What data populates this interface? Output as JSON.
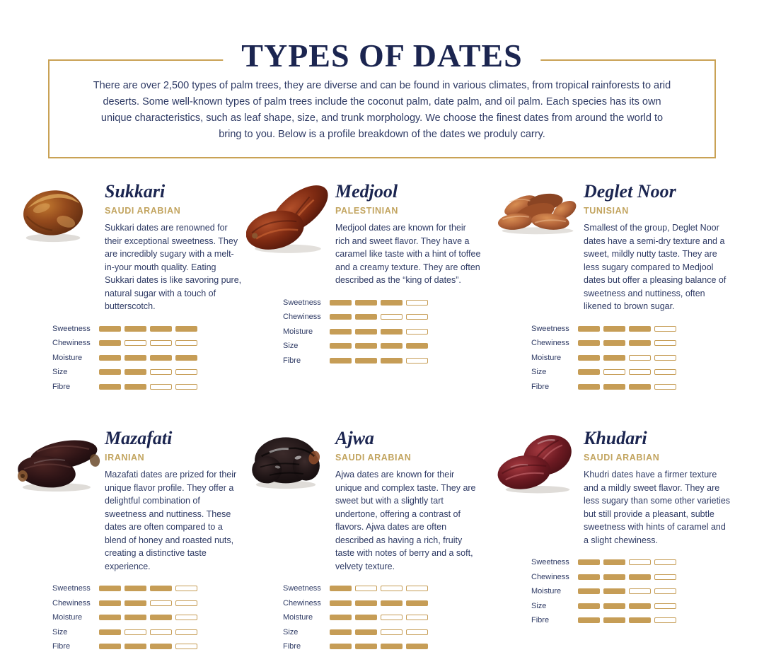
{
  "header": {
    "title": "TYPES OF DATES",
    "intro": "There are over 2,500 types of palm trees, they are diverse and can be found in various climates, from tropical rainforests to arid deserts. Some well-known types of palm trees include the coconut palm, date palm, and oil palm. Each species has its own unique characteristics, such as leaf shape, size, and trunk morphology. We choose the finest dates from around the world to bring to you. Below is a profile breakdown of the dates we produly carry."
  },
  "rating_labels": [
    "Sweetness",
    "Chewiness",
    "Moisture",
    "Size",
    "Fibre"
  ],
  "rating_max": 4,
  "colors": {
    "navy": "#1b2550",
    "gold": "#c9a255",
    "body_text": "#2e3a64",
    "bar_fill": "#c69d56"
  },
  "dates": [
    {
      "name": "Sukkari",
      "origin": "SAUDI ARABIAN",
      "illustration": "sukkari",
      "description": "Sukkari dates are renowned for their exceptional sweetness. They are incredibly sugary with a melt-in-your mouth quality. Eating Sukkari dates is like savoring pure, natural sugar with a touch of butterscotch.",
      "ratings": [
        4,
        1,
        4,
        2,
        2
      ]
    },
    {
      "name": "Medjool",
      "origin": "PALESTINIAN",
      "illustration": "medjool",
      "description": "Medjool dates are known for their rich and sweet flavor. They have a caramel like taste with a hint of toffee and a creamy texture. They are often described as the “king of dates”.",
      "ratings": [
        3,
        2,
        3,
        4,
        3
      ]
    },
    {
      "name": "Deglet Noor",
      "origin": "TUNISIAN",
      "illustration": "deglet-noor",
      "description": "Smallest of the group, Deglet Noor dates have a semi-dry texture and a sweet, mildly nutty taste. They are less sugary compared to Medjool dates but offer a pleasing balance of sweetness and nuttiness, often likened to brown sugar.",
      "ratings": [
        3,
        3,
        2,
        1,
        3
      ]
    },
    {
      "name": "Mazafati",
      "origin": "IRANIAN",
      "illustration": "mazafati",
      "description": "Mazafati dates are prized for their unique flavor profile. They offer a delightful combination of sweetness and nuttiness. These dates are often compared to a blend of honey and roasted nuts, creating a distinctive taste experience.",
      "ratings": [
        3,
        2,
        3,
        1,
        3
      ]
    },
    {
      "name": "Ajwa",
      "origin": "SAUDI ARABIAN",
      "illustration": "ajwa",
      "description": "Ajwa dates are known for their unique and complex taste. They are sweet but with a slightly tart undertone, offering a contrast of flavors. Ajwa dates are often described as having a rich, fruity taste with notes of berry and a soft, velvety texture.",
      "ratings": [
        1,
        4,
        2,
        2,
        4
      ]
    },
    {
      "name": "Khudari",
      "origin": "SAUDI ARABIAN",
      "illustration": "khudari",
      "description": "Khudri dates have a firmer texture and a mildly sweet flavor. They are less sugary than some other varieties but still provide a pleasant, subtle sweetness with hints of caramel and a slight chewiness.",
      "ratings": [
        2,
        3,
        2,
        3,
        3
      ]
    }
  ]
}
